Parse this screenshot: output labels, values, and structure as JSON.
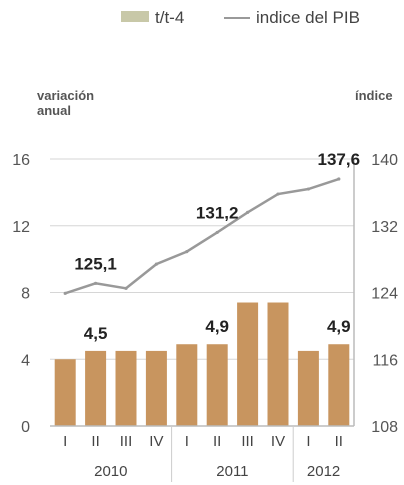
{
  "chart_data": {
    "type": "bar",
    "legend": {
      "bar_label": "t/t-4",
      "line_label": "indice del PIB",
      "placement": "top"
    },
    "left_axis": {
      "title_line1": "variación",
      "title_line2": "anual",
      "range": [
        0,
        16
      ],
      "ticks": [
        "0",
        "4",
        "8",
        "12",
        "16"
      ]
    },
    "right_axis": {
      "title": "índice",
      "range": [
        108,
        140
      ],
      "ticks": [
        "108",
        "116",
        "124",
        "132",
        "140"
      ]
    },
    "categories": [
      "I",
      "II",
      "III",
      "IV",
      "I",
      "II",
      "III",
      "IV",
      "I",
      "II"
    ],
    "years": [
      {
        "label": "2010",
        "from": 0,
        "to": 3
      },
      {
        "label": "2011",
        "from": 4,
        "to": 7
      },
      {
        "label": "2012",
        "from": 8,
        "to": 9
      }
    ],
    "series": [
      {
        "name": "t/t-4",
        "kind": "bar",
        "axis": "left",
        "color": "#c8955f",
        "values": [
          4.0,
          4.5,
          4.5,
          4.5,
          4.9,
          4.9,
          7.4,
          7.4,
          4.5,
          4.9
        ]
      },
      {
        "name": "indice del PIB",
        "kind": "line",
        "axis": "right",
        "color": "#999999",
        "values": [
          123.9,
          125.1,
          124.5,
          127.4,
          128.9,
          131.2,
          133.6,
          135.8,
          136.4,
          137.6
        ]
      }
    ],
    "bar_labels": [
      {
        "index": 1,
        "text": "4,5"
      },
      {
        "index": 5,
        "text": "4,9"
      },
      {
        "index": 9,
        "text": "4,9"
      }
    ],
    "line_labels": [
      {
        "index": 1,
        "text": "125,1"
      },
      {
        "index": 5,
        "text": "131,2"
      },
      {
        "index": 9,
        "text": "137,6"
      }
    ],
    "legend_swatch_color": "#c8c8a8",
    "grid": true
  }
}
